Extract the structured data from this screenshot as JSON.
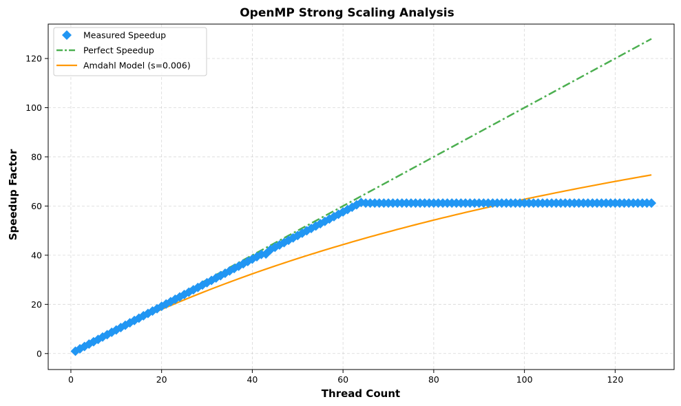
{
  "chart_data": {
    "type": "line",
    "title": "OpenMP Strong Scaling Analysis",
    "xlabel": "Thread Count",
    "ylabel": "Speedup Factor",
    "xlim": [
      -5,
      133
    ],
    "ylim": [
      -6.5,
      134
    ],
    "xticks": [
      0,
      20,
      40,
      60,
      80,
      100,
      120
    ],
    "yticks": [
      0,
      20,
      40,
      60,
      80,
      100,
      120
    ],
    "grid": true,
    "legend_position": "top-left",
    "series": [
      {
        "name": "Measured Speedup",
        "kind": "markers",
        "marker": "diamond",
        "color": "#2196F3",
        "points": {
          "x_range": [
            1,
            128
          ],
          "y_rule": "y = 0.96 * x up to x = 64 (with a small dip to about 40.5 at x = 43), then flat at about 61 for x > 64"
        }
      },
      {
        "name": "Perfect Speedup",
        "kind": "line",
        "style": "dash-dot",
        "color": "#4CAF50",
        "x_range": [
          1,
          128
        ],
        "y_equals_x": true
      },
      {
        "name": "Amdahl Model (s=0.006)",
        "kind": "line",
        "style": "solid",
        "color": "#FF9800",
        "serial_fraction": 0.006,
        "x_range": [
          1,
          128
        ]
      }
    ]
  }
}
